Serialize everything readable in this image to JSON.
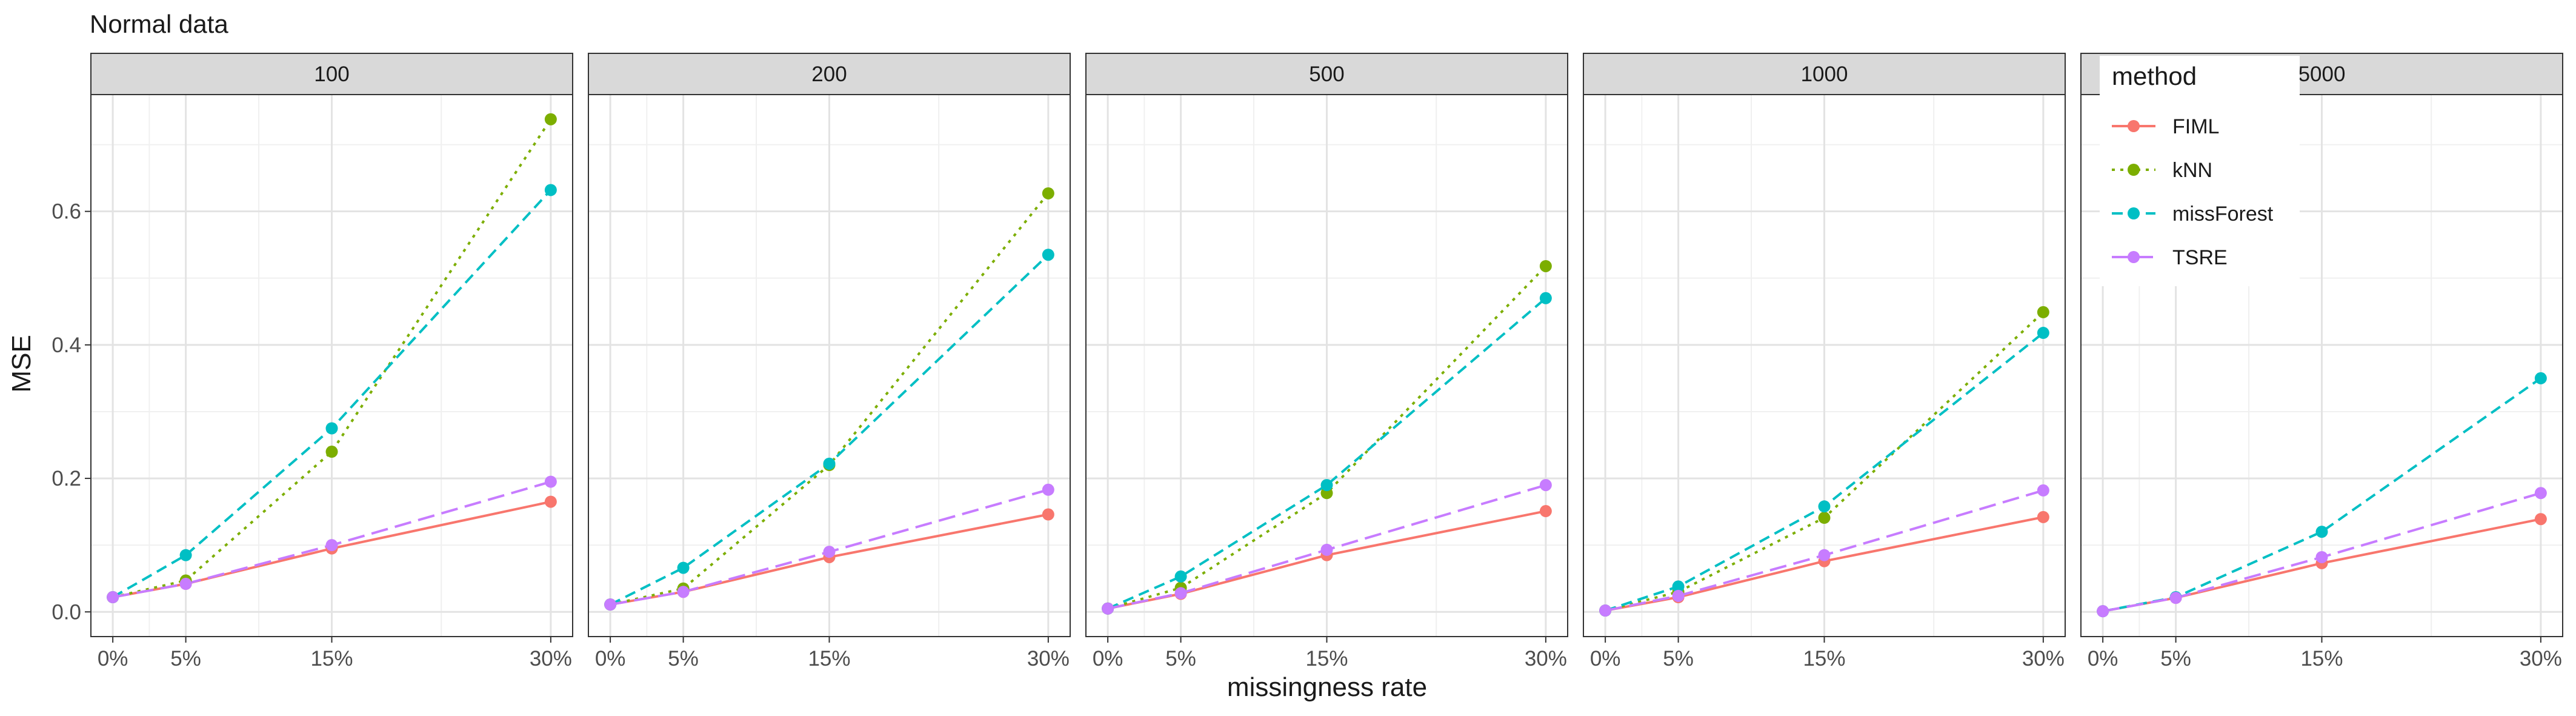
{
  "chart_data": {
    "type": "line",
    "title": "Normal data",
    "xlabel": "missingness rate",
    "ylabel": "MSE",
    "x": [
      0,
      5,
      15,
      30
    ],
    "x_tick_labels": [
      "0%",
      "5%",
      "15%",
      "30%"
    ],
    "y_ticks": [
      0.0,
      0.2,
      0.4,
      0.6
    ],
    "y_tick_labels": [
      "0.0",
      "0.2",
      "0.4",
      "0.6"
    ],
    "xlim": [
      -1.5,
      31.5
    ],
    "ylim": [
      -0.037,
      0.775
    ],
    "grid": true,
    "legend_title": "method",
    "legend_position": "top-left inside last panel",
    "series_meta": [
      {
        "name": "FIML",
        "color": "#F8766D",
        "dash": "solid"
      },
      {
        "name": "kNN",
        "color": "#7CAE00",
        "dash": "dotted"
      },
      {
        "name": "missForest",
        "color": "#00BFC4",
        "dash": "dashed"
      },
      {
        "name": "TSRE",
        "color": "#C77CFF",
        "dash": "longdash"
      }
    ],
    "panels": [
      {
        "label": "100",
        "series": [
          {
            "name": "FIML",
            "values": [
              0.022,
              0.042,
              0.095,
              0.165
            ]
          },
          {
            "name": "kNN",
            "values": [
              0.022,
              0.047,
              0.24,
              0.738
            ]
          },
          {
            "name": "missForest",
            "values": [
              0.022,
              0.085,
              0.275,
              0.632
            ]
          },
          {
            "name": "TSRE",
            "values": [
              0.022,
              0.042,
              0.1,
              0.195
            ]
          }
        ]
      },
      {
        "label": "200",
        "series": [
          {
            "name": "FIML",
            "values": [
              0.011,
              0.03,
              0.082,
              0.146
            ]
          },
          {
            "name": "kNN",
            "values": [
              0.011,
              0.035,
              0.22,
              0.627
            ]
          },
          {
            "name": "missForest",
            "values": [
              0.011,
              0.066,
              0.222,
              0.535
            ]
          },
          {
            "name": "TSRE",
            "values": [
              0.011,
              0.03,
              0.09,
              0.183
            ]
          }
        ]
      },
      {
        "label": "500",
        "series": [
          {
            "name": "FIML",
            "values": [
              0.005,
              0.027,
              0.085,
              0.151
            ]
          },
          {
            "name": "kNN",
            "values": [
              0.005,
              0.036,
              0.178,
              0.518
            ]
          },
          {
            "name": "missForest",
            "values": [
              0.005,
              0.053,
              0.19,
              0.47
            ]
          },
          {
            "name": "TSRE",
            "values": [
              0.005,
              0.028,
              0.093,
              0.19
            ]
          }
        ]
      },
      {
        "label": "1000",
        "series": [
          {
            "name": "FIML",
            "values": [
              0.002,
              0.022,
              0.076,
              0.142
            ]
          },
          {
            "name": "kNN",
            "values": [
              0.002,
              0.03,
              0.141,
              0.449
            ]
          },
          {
            "name": "missForest",
            "values": [
              0.002,
              0.038,
              0.158,
              0.418
            ]
          },
          {
            "name": "TSRE",
            "values": [
              0.002,
              0.024,
              0.085,
              0.182
            ]
          }
        ]
      },
      {
        "label": "5000",
        "series": [
          {
            "name": "FIML",
            "values": [
              0.001,
              0.021,
              0.073,
              0.139
            ]
          },
          {
            "name": "missForest",
            "values": [
              0.001,
              0.022,
              0.12,
              0.35
            ]
          },
          {
            "name": "TSRE",
            "values": [
              0.001,
              0.021,
              0.082,
              0.178
            ]
          }
        ]
      }
    ]
  }
}
